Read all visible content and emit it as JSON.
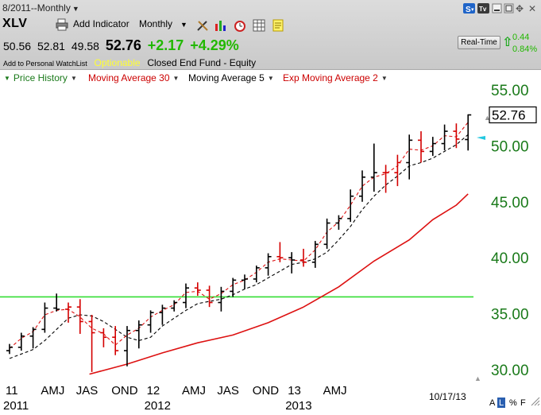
{
  "header": {
    "period_label": "8/2011--Monthly",
    "ticker": "XLV",
    "add_indicator": "Add Indicator",
    "interval": "Monthly",
    "watchlist": "Add to Personal WatchList",
    "optionable": "Optionable",
    "fund_type": "Closed End Fund - Equity",
    "realtime_button": "Real-Time",
    "rt_value1": "0.44",
    "rt_value2": "0.84%"
  },
  "quote": {
    "open": "50.56",
    "high": "52.81",
    "low": "49.58",
    "last": "52.76",
    "change": "+2.17",
    "change_pct": "+4.29%"
  },
  "legend": {
    "price_history": "Price History",
    "ma30": "Moving Average 30",
    "ma5": "Moving Average 5",
    "ema2": "Exp Moving Average 2"
  },
  "footer": {
    "date": "10/17/13",
    "btn_a": "A",
    "btn_l": "L",
    "btn_pct": "%",
    "btn_f": "F"
  },
  "colors": {
    "up_bar": "#000000",
    "down_bar": "#d40000",
    "ma30": "#dd1111",
    "ma5": "#000000",
    "ema2": "#dd1111",
    "horizontal_line": "#33dd33",
    "axis_text": "#1a7a1a"
  },
  "chart_data": {
    "type": "ohlc",
    "ylim": [
      28.5,
      56.0
    ],
    "y_ticks": [
      30,
      35,
      40,
      45,
      50,
      55
    ],
    "y_tick_labels": [
      "30.00",
      "35.00",
      "40.00",
      "45.00",
      "50.00",
      "55.00"
    ],
    "last_price_label": "52.76",
    "horizontal_line": 36.5,
    "x_tick_labels": [
      {
        "label": "11",
        "bar": 0
      },
      {
        "label": "AMJ",
        "bar": 3
      },
      {
        "label": "JAS",
        "bar": 6
      },
      {
        "label": "OND",
        "bar": 9
      },
      {
        "label": "12",
        "bar": 12
      },
      {
        "label": "AMJ",
        "bar": 15
      },
      {
        "label": "JAS",
        "bar": 18
      },
      {
        "label": "OND",
        "bar": 21
      },
      {
        "label": "13",
        "bar": 24
      },
      {
        "label": "AMJ",
        "bar": 27
      }
    ],
    "year_labels": [
      {
        "label": "2011",
        "bar": 0
      },
      {
        "label": "2012",
        "bar": 12
      },
      {
        "label": "2013",
        "bar": 24
      }
    ],
    "bars": [
      {
        "o": 31.7,
        "h": 32.3,
        "l": 31.4,
        "c": 32.0,
        "dir": "up"
      },
      {
        "o": 32.0,
        "h": 33.3,
        "l": 31.7,
        "c": 33.0,
        "dir": "up"
      },
      {
        "o": 33.0,
        "h": 33.8,
        "l": 31.9,
        "c": 33.6,
        "dir": "up"
      },
      {
        "o": 33.6,
        "h": 36.0,
        "l": 33.3,
        "c": 35.5,
        "dir": "up"
      },
      {
        "o": 35.5,
        "h": 36.8,
        "l": 35.2,
        "c": 35.4,
        "dir": "up"
      },
      {
        "o": 35.4,
        "h": 36.0,
        "l": 34.2,
        "c": 35.6,
        "dir": "down"
      },
      {
        "o": 35.6,
        "h": 36.3,
        "l": 33.2,
        "c": 34.3,
        "dir": "down"
      },
      {
        "o": 34.3,
        "h": 34.9,
        "l": 29.8,
        "c": 33.3,
        "dir": "down"
      },
      {
        "o": 33.3,
        "h": 33.7,
        "l": 32.0,
        "c": 32.9,
        "dir": "down"
      },
      {
        "o": 32.9,
        "h": 33.9,
        "l": 31.3,
        "c": 31.7,
        "dir": "down"
      },
      {
        "o": 31.7,
        "h": 33.9,
        "l": 30.3,
        "c": 33.5,
        "dir": "up"
      },
      {
        "o": 33.5,
        "h": 34.4,
        "l": 31.9,
        "c": 34.0,
        "dir": "up"
      },
      {
        "o": 34.0,
        "h": 35.3,
        "l": 33.3,
        "c": 35.1,
        "dir": "up"
      },
      {
        "o": 35.1,
        "h": 35.8,
        "l": 34.0,
        "c": 35.5,
        "dir": "up"
      },
      {
        "o": 35.5,
        "h": 36.2,
        "l": 35.2,
        "c": 36.0,
        "dir": "up"
      },
      {
        "o": 36.0,
        "h": 37.7,
        "l": 35.5,
        "c": 37.3,
        "dir": "up"
      },
      {
        "o": 37.3,
        "h": 37.8,
        "l": 36.6,
        "c": 37.1,
        "dir": "down"
      },
      {
        "o": 37.1,
        "h": 37.5,
        "l": 35.6,
        "c": 36.0,
        "dir": "down"
      },
      {
        "o": 36.0,
        "h": 37.4,
        "l": 35.2,
        "c": 37.0,
        "dir": "up"
      },
      {
        "o": 37.0,
        "h": 38.2,
        "l": 36.5,
        "c": 38.0,
        "dir": "up"
      },
      {
        "o": 38.0,
        "h": 38.5,
        "l": 37.2,
        "c": 38.1,
        "dir": "up"
      },
      {
        "o": 38.1,
        "h": 39.3,
        "l": 37.8,
        "c": 39.1,
        "dir": "up"
      },
      {
        "o": 39.1,
        "h": 40.4,
        "l": 38.4,
        "c": 40.1,
        "dir": "up"
      },
      {
        "o": 40.1,
        "h": 41.4,
        "l": 39.6,
        "c": 40.0,
        "dir": "down"
      },
      {
        "o": 40.0,
        "h": 40.5,
        "l": 38.6,
        "c": 39.8,
        "dir": "up"
      },
      {
        "o": 39.8,
        "h": 40.8,
        "l": 39.2,
        "c": 39.6,
        "dir": "down"
      },
      {
        "o": 39.6,
        "h": 41.5,
        "l": 39.1,
        "c": 41.2,
        "dir": "up"
      },
      {
        "o": 41.2,
        "h": 43.5,
        "l": 40.8,
        "c": 43.1,
        "dir": "up"
      },
      {
        "o": 43.1,
        "h": 43.8,
        "l": 42.5,
        "c": 43.5,
        "dir": "up"
      },
      {
        "o": 43.5,
        "h": 46.1,
        "l": 43.2,
        "c": 45.5,
        "dir": "up"
      },
      {
        "o": 45.5,
        "h": 47.8,
        "l": 45.0,
        "c": 47.2,
        "dir": "up"
      },
      {
        "o": 47.2,
        "h": 50.2,
        "l": 45.9,
        "c": 47.6,
        "dir": "up"
      },
      {
        "o": 47.6,
        "h": 48.3,
        "l": 45.8,
        "c": 47.6,
        "dir": "down"
      },
      {
        "o": 47.6,
        "h": 49.2,
        "l": 46.4,
        "c": 48.5,
        "dir": "down"
      },
      {
        "o": 48.5,
        "h": 51.0,
        "l": 47.0,
        "c": 50.5,
        "dir": "up"
      },
      {
        "o": 50.5,
        "h": 51.3,
        "l": 48.5,
        "c": 49.5,
        "dir": "down"
      },
      {
        "o": 49.5,
        "h": 50.8,
        "l": 49.1,
        "c": 50.2,
        "dir": "up"
      },
      {
        "o": 50.2,
        "h": 51.9,
        "l": 49.6,
        "c": 51.3,
        "dir": "up"
      },
      {
        "o": 51.3,
        "h": 52.0,
        "l": 49.8,
        "c": 50.6,
        "dir": "down"
      },
      {
        "o": 50.56,
        "h": 52.81,
        "l": 49.58,
        "c": 52.76,
        "dir": "up"
      }
    ],
    "ma30": [
      {
        "bar": 6.8,
        "v": 29.6
      },
      {
        "bar": 10,
        "v": 30.5
      },
      {
        "bar": 13,
        "v": 31.5
      },
      {
        "bar": 16,
        "v": 32.4
      },
      {
        "bar": 19,
        "v": 33.1
      },
      {
        "bar": 22,
        "v": 34.2
      },
      {
        "bar": 25,
        "v": 35.6
      },
      {
        "bar": 28,
        "v": 37.4
      },
      {
        "bar": 31,
        "v": 39.7
      },
      {
        "bar": 34,
        "v": 41.6
      },
      {
        "bar": 36,
        "v": 43.4
      },
      {
        "bar": 38,
        "v": 44.7
      },
      {
        "bar": 39,
        "v": 45.7
      }
    ],
    "ma5_series": [
      31.0,
      31.4,
      31.8,
      32.6,
      33.6,
      34.6,
      34.9,
      34.8,
      34.3,
      33.6,
      32.9,
      32.6,
      32.9,
      33.9,
      34.6,
      35.3,
      35.9,
      36.1,
      36.3,
      36.7,
      37.2,
      37.6,
      38.2,
      38.8,
      39.4,
      39.6,
      39.9,
      40.5,
      41.6,
      42.8,
      44.3,
      45.5,
      46.5,
      47.3,
      48.2,
      48.5,
      48.9,
      49.5,
      50.1,
      51.0
    ],
    "ema2_series": [
      31.9,
      32.8,
      33.4,
      34.9,
      35.3,
      35.4,
      34.7,
      33.7,
      33.2,
      32.2,
      33.1,
      33.7,
      34.7,
      35.3,
      35.8,
      36.9,
      37.0,
      36.3,
      36.8,
      37.6,
      38.0,
      38.7,
      39.6,
      39.9,
      39.8,
      39.7,
      40.7,
      42.3,
      43.2,
      44.7,
      46.4,
      47.2,
      47.5,
      48.2,
      49.7,
      49.6,
      50.0,
      50.9,
      50.8,
      52.1
    ]
  }
}
